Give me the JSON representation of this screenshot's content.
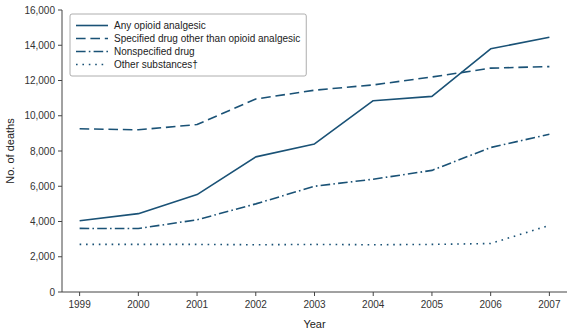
{
  "chart_data": {
    "type": "line",
    "x_label": "Year",
    "y_label": "No. of deaths",
    "x": [
      1999,
      2000,
      2001,
      2002,
      2003,
      2004,
      2005,
      2006,
      2007
    ],
    "series": [
      {
        "name": "Any opioid analgesic",
        "color": "#1a5276",
        "line_style": "solid",
        "values": [
          4041,
          4445,
          5528,
          7665,
          8400,
          10853,
          11100,
          13800,
          14459
        ]
      },
      {
        "name": "Specified drug other than opioid analgesic",
        "color": "#1a5276",
        "line_style": "dashed",
        "values": [
          9262,
          9204,
          9500,
          10950,
          11450,
          11750,
          12200,
          12700,
          12790
        ]
      },
      {
        "name": "Nonspecified drug",
        "color": "#1a5276",
        "line_style": "dashdot",
        "values": [
          3608,
          3600,
          4100,
          5000,
          6000,
          6400,
          6900,
          8200,
          8947
        ]
      },
      {
        "name": "Other substances†",
        "color": "#1a5276",
        "line_style": "dotted",
        "values": [
          2700,
          2700,
          2700,
          2680,
          2700,
          2680,
          2700,
          2750,
          3780
        ]
      }
    ],
    "xlim": [
      1998.7,
      2007.3
    ],
    "xticks": [
      1999,
      2000,
      2001,
      2002,
      2003,
      2004,
      2005,
      2006,
      2007
    ],
    "ylim": [
      0,
      16000
    ],
    "yticks": [
      0,
      {
        "value": 2000,
        "label": "2,000"
      },
      {
        "value": 4000,
        "label": "4,000"
      },
      {
        "value": 6000,
        "label": "6,000"
      },
      {
        "value": 8000,
        "label": "8,000"
      },
      {
        "value": 10000,
        "label": "10,000"
      },
      {
        "value": 12000,
        "label": "12,000"
      },
      {
        "value": 14000,
        "label": "14,000"
      },
      {
        "value": 16000,
        "label": "16,000"
      }
    ],
    "grid": false,
    "legend": "upper left"
  }
}
